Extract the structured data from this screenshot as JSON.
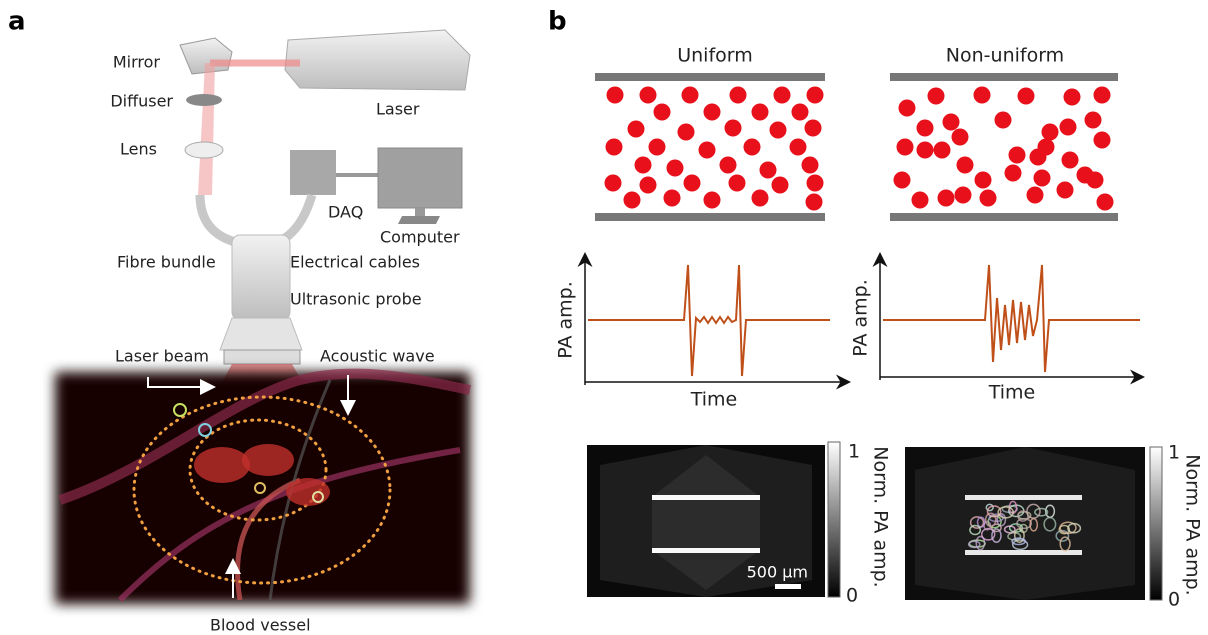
{
  "panel_a": {
    "label": "a",
    "mirror": "Mirror",
    "diffuser": "Diffuser",
    "lens": "Lens",
    "laser": "Laser",
    "daq": "DAQ",
    "computer": "Computer",
    "fibre_bundle": "Fibre bundle",
    "electrical_cables": "Electrical cables",
    "ultrasonic_probe": "Ultrasonic probe",
    "laser_beam": "Laser beam",
    "acoustic_wave": "Acoustic wave",
    "blood_vessel": "Blood vessel"
  },
  "panel_b": {
    "label": "b",
    "uniform": {
      "title": "Uniform",
      "y_axis": "PA amp.",
      "x_axis": "Time",
      "colorbar_max": "1",
      "colorbar_min": "0",
      "colorbar_label": "Norm. PA amp.",
      "scale_bar": "500 μm"
    },
    "non_uniform": {
      "title": "Non-uniform",
      "y_axis": "PA amp.",
      "x_axis": "Time",
      "colorbar_max": "1",
      "colorbar_min": "0",
      "colorbar_label": "Norm. PA amp."
    }
  }
}
